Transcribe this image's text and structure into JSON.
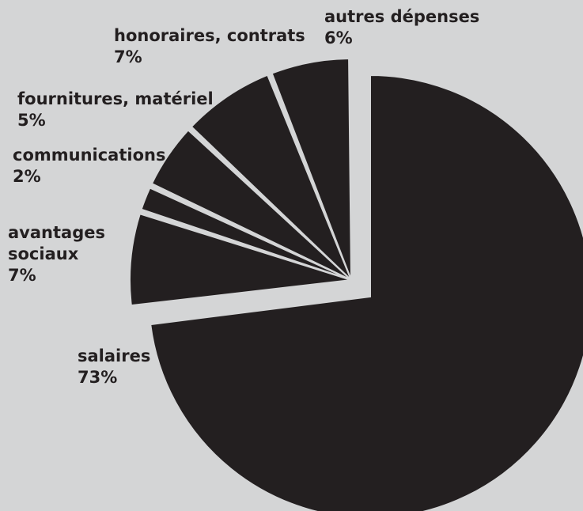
{
  "chart_data": {
    "type": "pie",
    "title": "",
    "colors": {
      "slice": "#231f20",
      "background": "#d4d5d6",
      "separator": "#d4d5d6"
    },
    "slices": [
      {
        "name": "salaires",
        "value": 73,
        "value_label": "73%",
        "exploded": true
      },
      {
        "name": "avantages sociaux",
        "name_lines": [
          "avantages",
          "sociaux"
        ],
        "value": 7,
        "value_label": "7%",
        "exploded": false
      },
      {
        "name": "communications",
        "name_lines": [
          "communications"
        ],
        "value": 2,
        "value_label": "2%",
        "exploded": false
      },
      {
        "name": "fournitures, matériel",
        "name_lines": [
          "fournitures, matériel"
        ],
        "value": 5,
        "value_label": "5%",
        "exploded": false
      },
      {
        "name": "honoraires, contrats",
        "name_lines": [
          "honoraires, contrats"
        ],
        "value": 7,
        "value_label": "7%",
        "exploded": false
      },
      {
        "name": "autres dépenses",
        "name_lines": [
          "autres dépenses"
        ],
        "value": 6,
        "value_label": "6%",
        "exploded": false
      }
    ]
  }
}
